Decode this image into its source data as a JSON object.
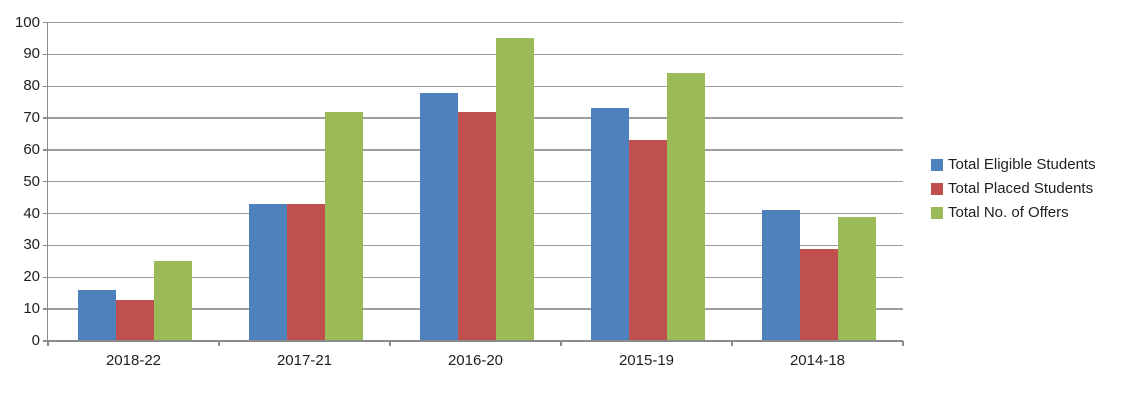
{
  "chart_data": {
    "type": "bar",
    "title": "",
    "xlabel": "",
    "ylabel": "",
    "categories": [
      "2018-22",
      "2017-21",
      "2016-20",
      "2015-19",
      "2014-18"
    ],
    "series": [
      {
        "name": "Total Eligible Students",
        "color": "#4F81BD",
        "values": [
          16,
          43,
          78,
          73,
          41
        ]
      },
      {
        "name": "Total Placed Students",
        "color": "#C0504D",
        "values": [
          13,
          43,
          72,
          63,
          29
        ]
      },
      {
        "name": "Total No. of Offers",
        "color": "#9BBB59",
        "values": [
          25,
          72,
          95,
          84,
          39
        ]
      }
    ],
    "ylim": [
      0,
      100
    ],
    "ytick_step": 10,
    "yticks": [
      0,
      10,
      20,
      30,
      40,
      50,
      60,
      70,
      80,
      90,
      100
    ],
    "grid": true,
    "legend_position": "right",
    "colors": {
      "gridline": "#9d9d9d",
      "axis": "#8c8c8c",
      "text": "#1f1f1f",
      "background": "#ffffff"
    }
  }
}
